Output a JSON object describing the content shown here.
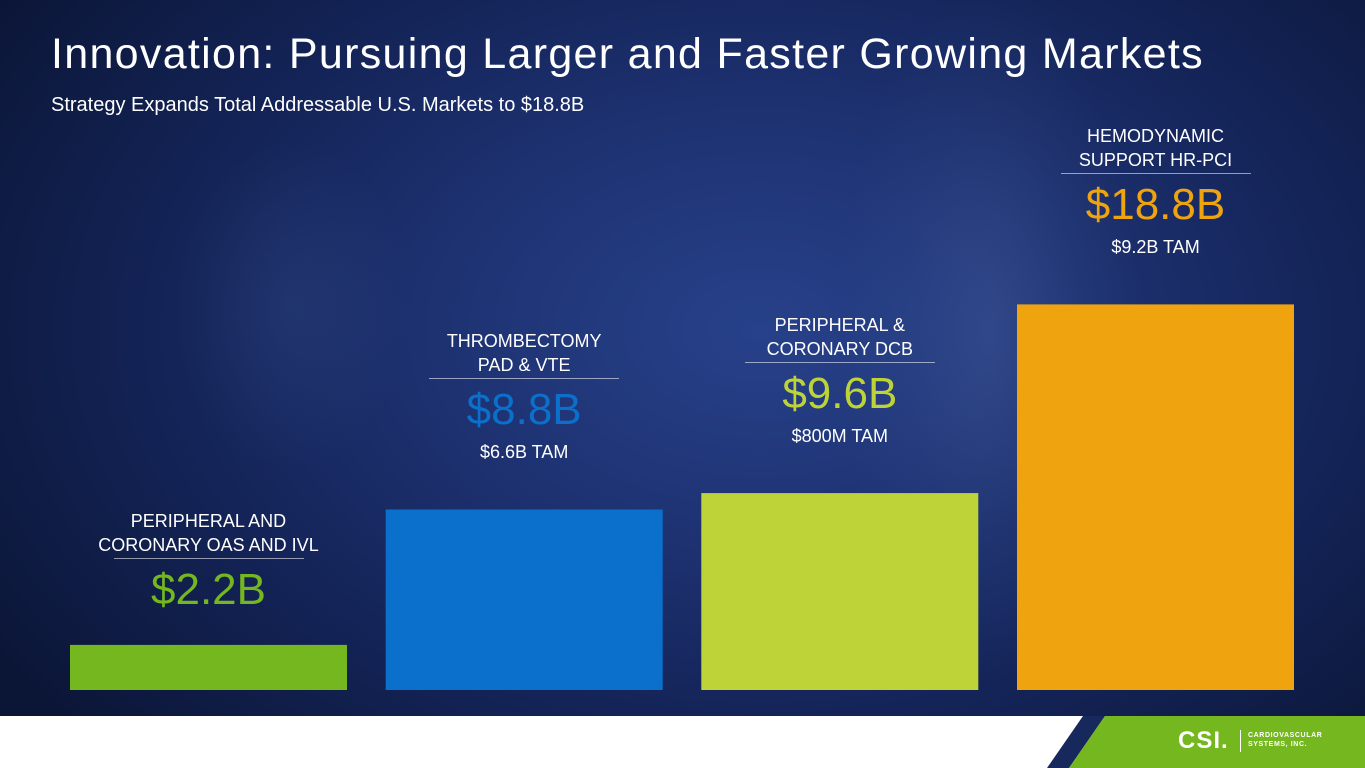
{
  "title": "Innovation:  Pursuing Larger and Faster Growing Markets",
  "subtitle": "Strategy Expands Total Addressable U.S. Markets to $18.8B",
  "chart_data": {
    "type": "bar",
    "categories": [
      "PERIPHERAL AND CORONARY OAS AND IVL",
      "THROMBECTOMY PAD & VTE",
      "PERIPHERAL & CORONARY DCB",
      "HEMODYNAMIC SUPPORT HR-PCI"
    ],
    "values": [
      2.2,
      8.8,
      9.6,
      18.8
    ],
    "unit": "$B",
    "ylim": [
      0,
      19.5
    ],
    "grid": false,
    "bars": [
      {
        "cat_lines": [
          "PERIPHERAL AND",
          "CORONARY OAS AND IVL"
        ],
        "value_label": "$2.2B",
        "tam": "",
        "color": "#74b71f"
      },
      {
        "cat_lines": [
          "THROMBECTOMY",
          "PAD & VTE"
        ],
        "value_label": "$8.8B",
        "tam": "$6.6B TAM",
        "color": "#0a70cb"
      },
      {
        "cat_lines": [
          "PERIPHERAL &",
          "CORONARY DCB"
        ],
        "value_label": "$9.6B",
        "tam": "$800M TAM",
        "color": "#bed337"
      },
      {
        "cat_lines": [
          "HEMODYNAMIC",
          "SUPPORT HR-PCI"
        ],
        "value_label": "$18.8B",
        "tam": "$9.2B TAM",
        "color": "#eea30f"
      }
    ]
  },
  "footer": {
    "logo_mark": "CSI.",
    "logo_line1": "CARDIOVASCULAR",
    "logo_line2": "SYSTEMS, INC.",
    "accent_green": "#74b71f",
    "accent_navy": "#16285c"
  }
}
